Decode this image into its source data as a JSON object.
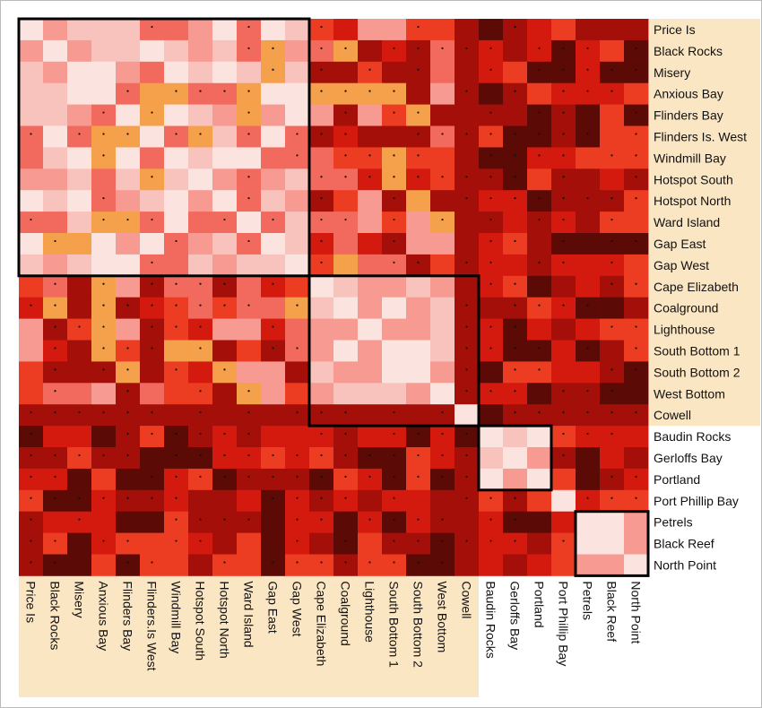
{
  "chart_data": {
    "type": "heatmap",
    "sites": [
      "Price Is",
      "Black Rocks",
      "Misery",
      "Anxious Bay",
      "Flinders Bay",
      "Flinders Is. West",
      "Windmill Bay",
      "Hotspot South",
      "Hotspot North",
      "Ward Island",
      "Gap East",
      "Gap West",
      "Cape Elizabeth",
      "Coalground",
      "Lighthouse",
      "South Bottom 1",
      "South Bottom 2",
      "West Bottom",
      "Cowell",
      "Baudin Rocks",
      "Gerloffs Bay",
      "Portland",
      "Port Phillip Bay",
      "Petrels",
      "Black Reef",
      "North Point"
    ],
    "column_labels": [
      "Price Is",
      "Black Rocks",
      "Misery",
      "Anxious Bay",
      "Flinders Bay",
      "Flinders.Is West",
      "Windmill Bay",
      "Hotspot South",
      "Hotspot North",
      "Ward Island",
      "Gap East",
      "Gap West",
      "Cape Elizabeth",
      "Coalground",
      "Lighthouse",
      "South Bottom 1",
      "South Bottom 2",
      "West Bottom",
      "Cowell",
      "Baudin Rocks",
      "Gerloffs Bay",
      "Portland",
      "Port Phillip Bay",
      "Petrels",
      "Black Reef",
      "North Point"
    ],
    "groups": [
      {
        "start": 0,
        "end": 11
      },
      {
        "start": 12,
        "end": 18
      },
      {
        "start": 19,
        "end": 21
      },
      {
        "start": 23,
        "end": 25
      }
    ],
    "color_scale": [
      "#fbe4e0",
      "#f9c3bd",
      "#f79a92",
      "#f26a5e",
      "#f5a04a",
      "#ec3c22",
      "#d41a0f",
      "#a50f0a",
      "#5c0a06"
    ],
    "label_band_color": "#fbe6c4"
  }
}
